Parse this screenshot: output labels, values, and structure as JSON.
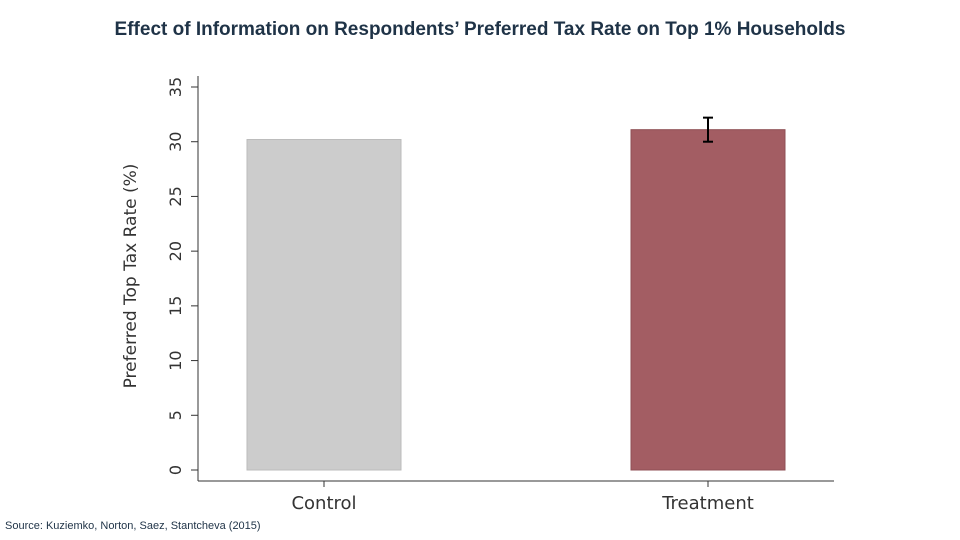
{
  "header": {
    "title": "Effect of Information on Respondents’ Preferred Tax Rate on Top 1% Households"
  },
  "footer": {
    "source": "Source: Kuziemko, Norton, Saez, Stantcheva (2015)"
  },
  "chart_data": {
    "type": "bar",
    "title": "Effect of Information on Respondents’ Preferred Tax Rate on Top 1% Households",
    "xlabel": "",
    "ylabel": "Preferred Top Tax Rate (%)",
    "categories": [
      "Control",
      "Treatment"
    ],
    "values": [
      30.2,
      31.1
    ],
    "error_bars": [
      null,
      {
        "low": 30.0,
        "high": 32.2
      }
    ],
    "ylim": [
      0,
      35
    ],
    "yticks": [
      0,
      5,
      10,
      15,
      20,
      25,
      30,
      35
    ],
    "grid": false,
    "legend": "none",
    "colors": {
      "Control": "#cccccc",
      "Treatment": "#a35d63",
      "error_bar": "#000000",
      "axis": "#333333"
    }
  }
}
